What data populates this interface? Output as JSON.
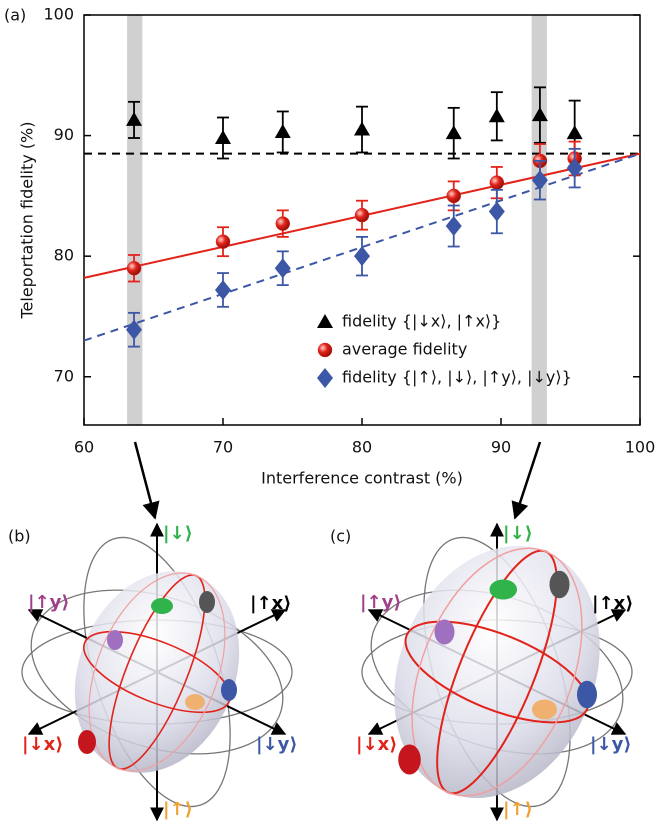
{
  "chart_data": {
    "type": "scatter",
    "panel_label": "(a)",
    "x_label": "Interference contrast (%)",
    "y_label": "Teleportation fidelity (%)",
    "xlim": [
      60,
      100
    ],
    "ylim": [
      66,
      100
    ],
    "xticks": [
      60,
      70,
      80,
      90,
      100
    ],
    "yticks": [
      70,
      80,
      90,
      100
    ],
    "legend_position": "lower right",
    "x": [
      63.6,
      70,
      74.3,
      80,
      86.6,
      89.7,
      92.8,
      95.3
    ],
    "highlight_bands": [
      [
        63.1,
        64.2
      ],
      [
        92.2,
        93.3
      ]
    ],
    "series": [
      {
        "name": "fidelity {|↓x⟩, |↑x⟩}",
        "color": "#000000",
        "marker": "triangle",
        "values": [
          91.3,
          89.8,
          90.3,
          90.5,
          90.2,
          91.6,
          91.7,
          90.2
        ],
        "errors": [
          1.5,
          1.7,
          1.7,
          1.9,
          2.1,
          2.0,
          2.3,
          2.7
        ]
      },
      {
        "name": "average fidelity",
        "color": "#e2231a",
        "marker": "circle",
        "values": [
          79.0,
          81.2,
          82.7,
          83.4,
          85.0,
          86.1,
          87.9,
          88.1
        ],
        "errors": [
          1.1,
          1.2,
          1.1,
          1.2,
          1.2,
          1.3,
          1.4,
          1.4
        ]
      },
      {
        "name": "fidelity {|↑⟩, |↓⟩, |↑y⟩, |↓y⟩}",
        "color": "#3b57a6",
        "marker": "diamond",
        "values": [
          73.9,
          77.2,
          79.0,
          80.0,
          82.5,
          83.7,
          86.3,
          87.3
        ],
        "errors": [
          1.4,
          1.4,
          1.4,
          1.6,
          1.7,
          1.8,
          1.6,
          1.6
        ]
      }
    ],
    "fit_lines": [
      {
        "color": "#000000",
        "dashed": true,
        "x": [
          60,
          100
        ],
        "values": [
          88.5,
          88.5
        ]
      },
      {
        "color": "#e2231a",
        "dashed": false,
        "x": [
          60,
          100
        ],
        "values": [
          78.2,
          88.5
        ]
      },
      {
        "color": "#3b57a6",
        "dashed": true,
        "x": [
          60,
          100
        ],
        "values": [
          73.0,
          88.5
        ]
      }
    ]
  },
  "bloch_spheres": [
    {
      "panel_label": "(b)",
      "states": [
        "|↓⟩",
        "|↑x⟩",
        "|↑y⟩",
        "|↓x⟩",
        "|↓y⟩",
        "|↑⟩"
      ]
    },
    {
      "panel_label": "(c)",
      "states": [
        "|↓⟩",
        "|↑x⟩",
        "|↑y⟩",
        "|↓x⟩",
        "|↓y⟩",
        "|↑⟩"
      ]
    }
  ]
}
